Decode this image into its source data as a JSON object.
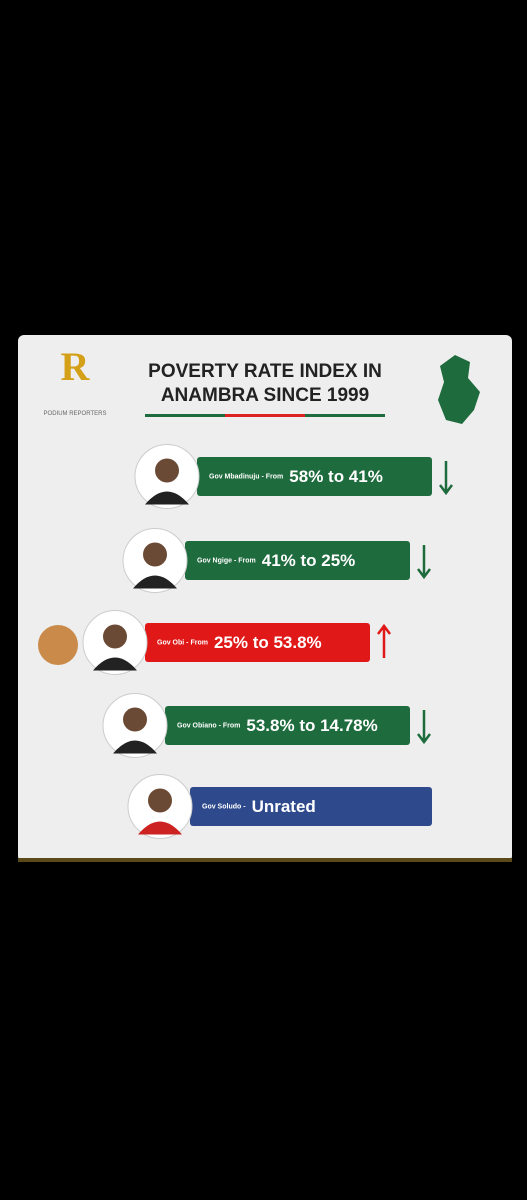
{
  "header": {
    "logo_letter": "R",
    "logo_text": "PODIUM REPORTERS",
    "title_line1": "POVERTY RATE INDEX IN",
    "title_line2": "ANAMBRA SINCE 1999"
  },
  "rows": [
    {
      "label": "Gov Mbadinuju - From",
      "range": "58% to 41%"
    },
    {
      "label": "Gov Ngige - From",
      "range": "41% to 25%"
    },
    {
      "label": "Gov Obi - From",
      "range": "25% to 53.8%"
    },
    {
      "label": "Gov Obiano - From",
      "range": "53.8% to 14.78%"
    },
    {
      "label": "Gov Soludo -",
      "range": "Unrated"
    }
  ]
}
